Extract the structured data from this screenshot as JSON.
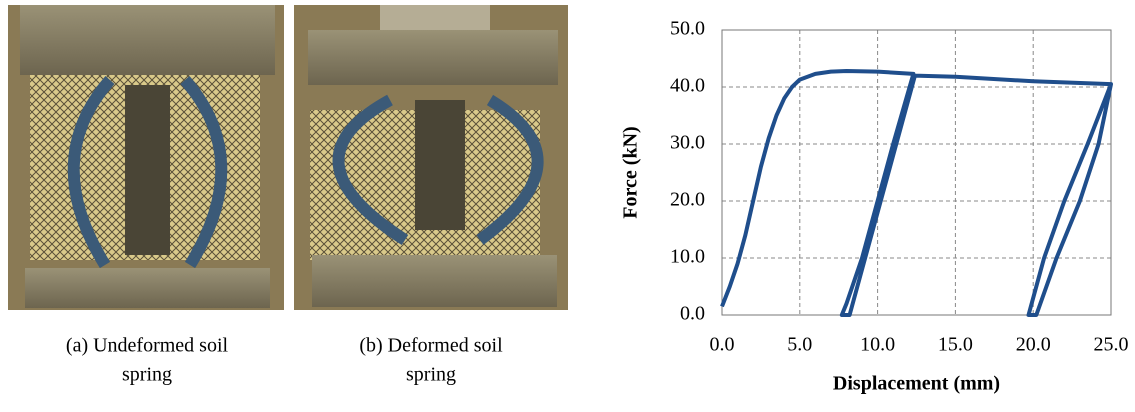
{
  "captions": [
    {
      "lines": [
        "(a) Undeformed soil",
        "spring"
      ]
    },
    {
      "lines": [
        "(b) Deformed soil",
        "spring"
      ]
    }
  ],
  "chart_data": {
    "type": "line",
    "xlabel": "Displacement (mm)",
    "ylabel": "Force (kN)",
    "xlim": [
      0,
      25
    ],
    "ylim": [
      0,
      50
    ],
    "xticks": [
      {
        "value": 0,
        "label": "0.0"
      },
      {
        "value": 5,
        "label": "5.0"
      },
      {
        "value": 10,
        "label": "10.0"
      },
      {
        "value": 15,
        "label": "15.0"
      },
      {
        "value": 20,
        "label": "20.0"
      },
      {
        "value": 25,
        "label": "25.0"
      }
    ],
    "yticks": [
      {
        "value": 0,
        "label": "0.0"
      },
      {
        "value": 10,
        "label": "10.0"
      },
      {
        "value": 20,
        "label": "20.0"
      },
      {
        "value": 30,
        "label": "30.0"
      },
      {
        "value": 40,
        "label": "40.0"
      },
      {
        "value": 50,
        "label": "50.0"
      }
    ],
    "grid": true,
    "series": [
      {
        "color": "#1f4e8c",
        "x": [
          0,
          0.5,
          1,
          1.5,
          2,
          2.5,
          3,
          3.5,
          4,
          4.5,
          5,
          6,
          7,
          8,
          10,
          12.3,
          11,
          10,
          9,
          8,
          7.7,
          8.2,
          9.2,
          10.2,
          11.2,
          12.4,
          15,
          20,
          25,
          23.5,
          22,
          20.7,
          19.7,
          20.2,
          21.5,
          23,
          24.2,
          25
        ],
        "values": [
          1.5,
          5,
          9,
          14,
          20,
          26,
          31,
          35,
          38,
          40,
          41.3,
          42.3,
          42.7,
          42.8,
          42.7,
          42.3,
          30,
          20,
          10,
          2,
          0,
          0,
          10,
          20,
          30,
          42,
          41.8,
          41,
          40.5,
          30,
          20,
          10,
          0,
          0,
          10,
          20,
          30,
          40.5
        ]
      }
    ]
  }
}
